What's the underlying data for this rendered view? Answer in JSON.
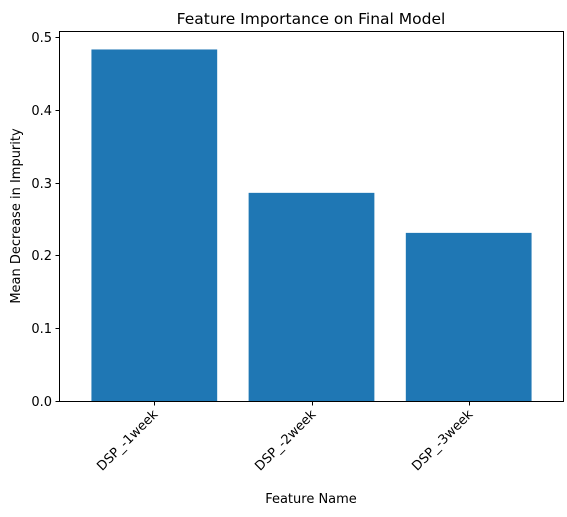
{
  "chart_data": {
    "type": "bar",
    "title": "Feature Importance on Final Model",
    "xlabel": "Feature Name",
    "ylabel": "Mean Decrease in Impurity",
    "categories": [
      "DSP_-1week",
      "DSP_-2week",
      "DSP_-3week"
    ],
    "values": [
      0.483,
      0.286,
      0.231
    ],
    "ylim": [
      0,
      0.507
    ],
    "yticks": [
      0.0,
      0.1,
      0.2,
      0.3,
      0.4,
      0.5
    ],
    "ytick_labels": [
      "0.0",
      "0.1",
      "0.2",
      "0.3",
      "0.4",
      "0.5"
    ],
    "xtick_rotation": 45,
    "bar_color": "#1f77b4",
    "grid": false,
    "legend": "none"
  }
}
